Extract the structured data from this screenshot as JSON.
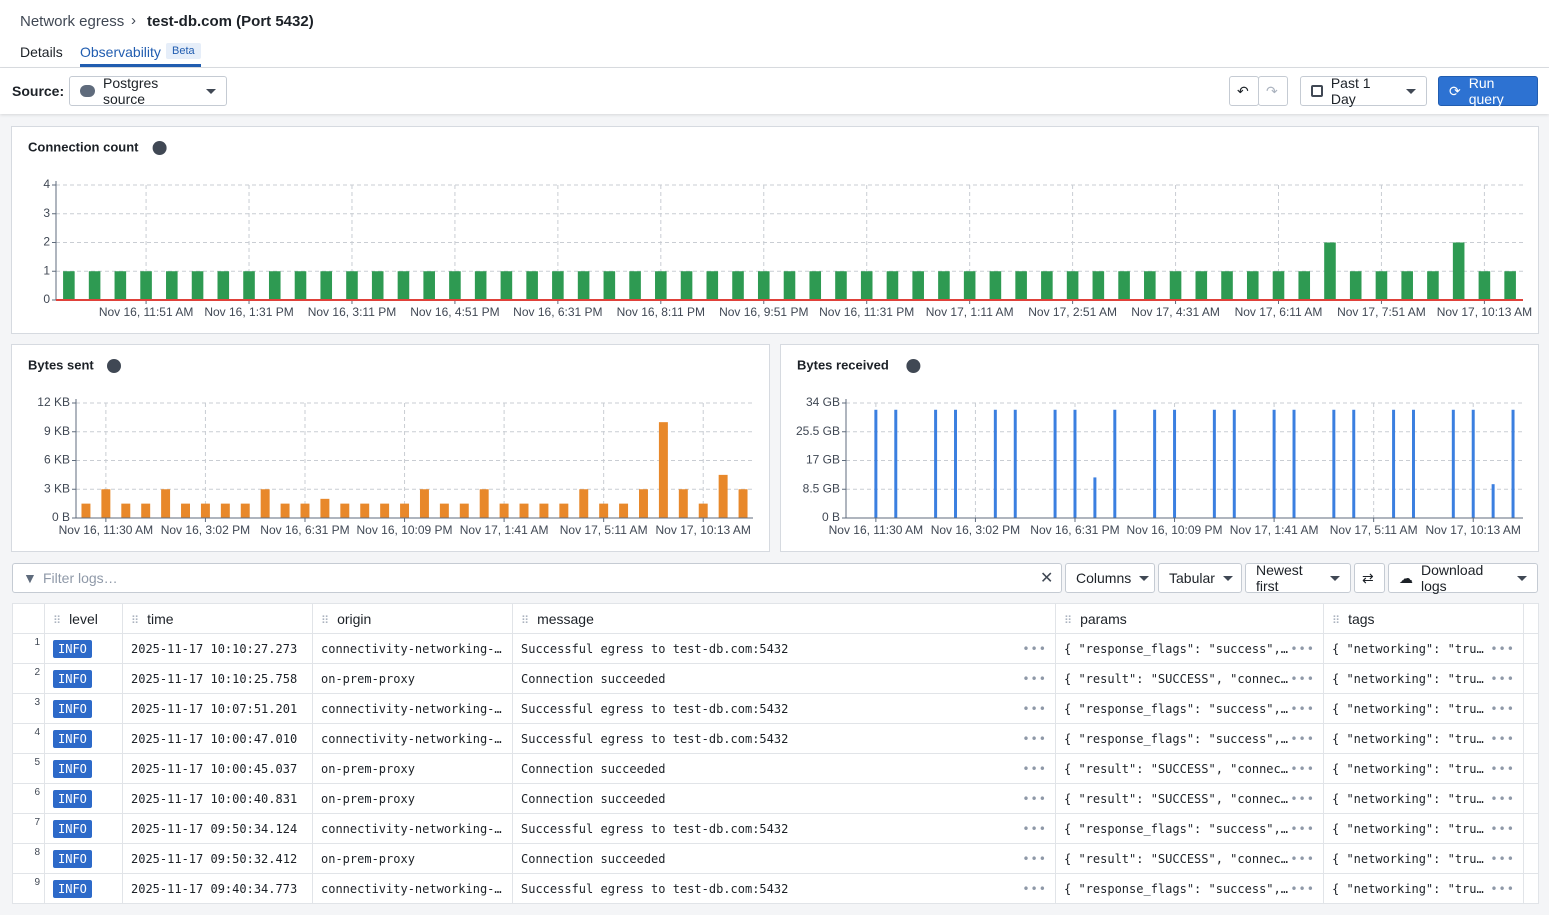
{
  "header": {
    "breadcrumb": "Network egress",
    "title": "test-db.com (Port 5432)",
    "tabs": [
      "Details",
      "Observability"
    ],
    "badge": "Beta"
  },
  "toolbar": {
    "source_label": "Source:",
    "source": "Postgres source",
    "range": "Past 1 Day",
    "run": "Run query"
  },
  "chart_data": [
    {
      "type": "bar",
      "title": "Connection count",
      "color": "#2e9a52",
      "grid": true,
      "ylim": [
        0,
        4
      ],
      "yticks": [
        0,
        1,
        2,
        3,
        4
      ],
      "categories": [
        null,
        null,
        null,
        "Nov 16, 11:51 AM",
        null,
        null,
        null,
        "Nov 16, 1:31 PM",
        null,
        null,
        null,
        "Nov 16, 3:11 PM",
        null,
        null,
        null,
        "Nov 16, 4:51 PM",
        null,
        null,
        null,
        "Nov 16, 6:31 PM",
        null,
        null,
        null,
        "Nov 16, 8:11 PM",
        null,
        null,
        null,
        "Nov 16, 9:51 PM",
        null,
        null,
        null,
        "Nov 16, 11:31 PM",
        null,
        null,
        null,
        "Nov 17, 1:11 AM",
        null,
        null,
        null,
        "Nov 17, 2:51 AM",
        null,
        null,
        null,
        "Nov 17, 4:31 AM",
        null,
        null,
        null,
        "Nov 17, 6:11 AM",
        null,
        null,
        null,
        "Nov 17, 7:51 AM",
        null,
        null,
        null,
        "Nov 17, 10:13 AM",
        null
      ],
      "values": [
        1,
        1,
        1,
        1,
        1,
        1,
        1,
        1,
        1,
        1,
        1,
        1,
        1,
        1,
        1,
        1,
        1,
        1,
        1,
        1,
        1,
        1,
        1,
        1,
        1,
        1,
        1,
        1,
        1,
        1,
        1,
        1,
        1,
        1,
        1,
        1,
        1,
        1,
        1,
        1,
        1,
        1,
        1,
        1,
        1,
        1,
        1,
        1,
        1,
        2,
        1,
        1,
        1,
        1,
        2,
        1,
        1
      ]
    },
    {
      "type": "bar",
      "title": "Bytes sent",
      "color": "#e8882a",
      "grid": true,
      "ylim": [
        0,
        12
      ],
      "yticks": [
        {
          "value": 0,
          "label": "0 B"
        },
        {
          "value": 3,
          "label": "3 KB"
        },
        {
          "value": 6,
          "label": "6 KB"
        },
        {
          "value": 9,
          "label": "9 KB"
        },
        {
          "value": 12,
          "label": "12 KB"
        }
      ],
      "categories": [
        null,
        "Nov 16, 11:30 AM",
        null,
        null,
        null,
        null,
        "Nov 16, 3:02 PM",
        null,
        null,
        null,
        null,
        "Nov 16, 6:31 PM",
        null,
        null,
        null,
        null,
        "Nov 16, 10:09 PM",
        null,
        null,
        null,
        null,
        "Nov 17, 1:41 AM",
        null,
        null,
        null,
        null,
        "Nov 17, 5:11 AM",
        null,
        null,
        null,
        null,
        "Nov 17, 10:13 AM",
        null,
        null
      ],
      "values": [
        1.5,
        3,
        1.5,
        1.5,
        3,
        1.5,
        1.5,
        1.5,
        1.5,
        3,
        1.5,
        1.5,
        2,
        1.5,
        1.5,
        1.5,
        1.5,
        3,
        1.5,
        1.5,
        3,
        1.5,
        1.5,
        1.5,
        1.5,
        3,
        1.5,
        1.5,
        3,
        10,
        3,
        1.5,
        4.5,
        3
      ]
    },
    {
      "type": "bar",
      "title": "Bytes received",
      "color": "#3b7fe0",
      "grid": true,
      "ylim": [
        0,
        34
      ],
      "yticks": [
        {
          "value": 0,
          "label": "0 B"
        },
        {
          "value": 8.5,
          "label": "8.5 GB"
        },
        {
          "value": 17,
          "label": "17 GB"
        },
        {
          "value": 25.5,
          "label": "25.5 GB"
        },
        {
          "value": 34,
          "label": "34 GB"
        }
      ],
      "categories": [
        null,
        "Nov 16, 11:30 AM",
        null,
        null,
        null,
        null,
        "Nov 16, 3:02 PM",
        null,
        null,
        null,
        null,
        "Nov 16, 6:31 PM",
        null,
        null,
        null,
        null,
        "Nov 16, 10:09 PM",
        null,
        null,
        null,
        null,
        "Nov 17, 1:41 AM",
        null,
        null,
        null,
        null,
        "Nov 17, 5:11 AM",
        null,
        null,
        null,
        null,
        "Nov 17, 10:13 AM",
        null,
        null
      ],
      "values": [
        0,
        32,
        32,
        0,
        32,
        32,
        0,
        32,
        32,
        0,
        32,
        32,
        12,
        32,
        0,
        32,
        32,
        0,
        32,
        32,
        0,
        32,
        32,
        0,
        32,
        32,
        0,
        32,
        32,
        0,
        32,
        32,
        10,
        32
      ]
    }
  ],
  "logs": {
    "filter_placeholder": "Filter logs…",
    "buttons": [
      "Columns",
      "Tabular",
      "Newest first",
      "Download logs"
    ],
    "columns": [
      "level",
      "time",
      "origin",
      "message",
      "params",
      "tags"
    ],
    "rows": [
      [
        "1",
        "INFO",
        "2025-11-17 10:10:27.273",
        "connectivity-networking-…",
        "Successful egress to test-db.com:5432",
        "{ \"response_flags\": \"success\",…",
        "{ \"networking\": \"tru…"
      ],
      [
        "2",
        "INFO",
        "2025-11-17 10:10:25.758",
        "on-prem-proxy",
        "Connection succeeded",
        "{ \"result\": \"SUCCESS\", \"connec…",
        "{ \"networking\": \"tru…"
      ],
      [
        "3",
        "INFO",
        "2025-11-17 10:07:51.201",
        "connectivity-networking-…",
        "Successful egress to test-db.com:5432",
        "{ \"response_flags\": \"success\",…",
        "{ \"networking\": \"tru…"
      ],
      [
        "4",
        "INFO",
        "2025-11-17 10:00:47.010",
        "connectivity-networking-…",
        "Successful egress to test-db.com:5432",
        "{ \"response_flags\": \"success\",…",
        "{ \"networking\": \"tru…"
      ],
      [
        "5",
        "INFO",
        "2025-11-17 10:00:45.037",
        "on-prem-proxy",
        "Connection succeeded",
        "{ \"result\": \"SUCCESS\", \"connec…",
        "{ \"networking\": \"tru…"
      ],
      [
        "6",
        "INFO",
        "2025-11-17 10:00:40.831",
        "on-prem-proxy",
        "Connection succeeded",
        "{ \"result\": \"SUCCESS\", \"connec…",
        "{ \"networking\": \"tru…"
      ],
      [
        "7",
        "INFO",
        "2025-11-17 09:50:34.124",
        "connectivity-networking-…",
        "Successful egress to test-db.com:5432",
        "{ \"response_flags\": \"success\",…",
        "{ \"networking\": \"tru…"
      ],
      [
        "8",
        "INFO",
        "2025-11-17 09:50:32.412",
        "on-prem-proxy",
        "Connection succeeded",
        "{ \"result\": \"SUCCESS\", \"connec…",
        "{ \"networking\": \"tru…"
      ],
      [
        "9",
        "INFO",
        "2025-11-17 09:40:34.773",
        "connectivity-networking-…",
        "Successful egress to test-db.com:5432",
        "{ \"response_flags\": \"success\",…",
        "{ \"networking\": \"tru…"
      ]
    ]
  }
}
